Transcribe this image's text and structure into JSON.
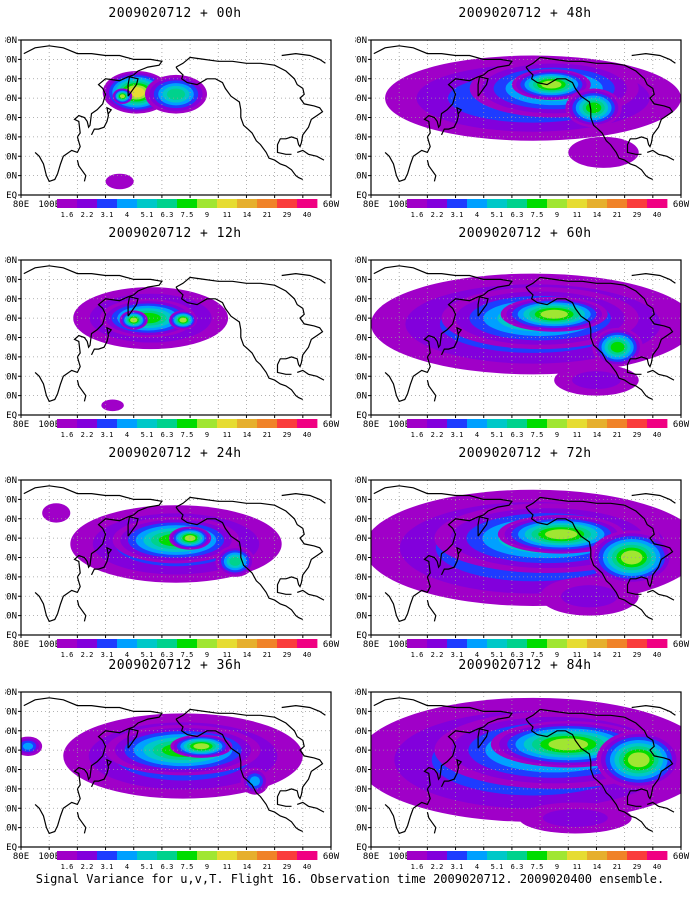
{
  "figure": {
    "caption": "Signal Variance for u,v,T. Flight 16. Observation time 2009020712. 2009020400 ensemble."
  },
  "panels": [
    {
      "title": "2009020712 + 00h"
    },
    {
      "title": "2009020712 + 48h"
    },
    {
      "title": "2009020712 + 12h"
    },
    {
      "title": "2009020712 + 60h"
    },
    {
      "title": "2009020712 + 24h"
    },
    {
      "title": "2009020712 + 72h"
    },
    {
      "title": "2009020712 + 36h"
    },
    {
      "title": "2009020712 + 84h"
    }
  ],
  "chart_data": {
    "type": "heatmap",
    "x_tick_labels": [
      "80E",
      "100E",
      "120E",
      "140E",
      "160E",
      "180",
      "160W",
      "140W",
      "120W",
      "100W",
      "80W",
      "60W"
    ],
    "y_tick_labels": [
      "EQ",
      "10N",
      "20N",
      "30N",
      "40N",
      "50N",
      "60N",
      "70N",
      "80N"
    ],
    "grid": true,
    "colorbar": {
      "levels": [
        "1.6",
        "2.2",
        "3.1",
        "4",
        "5.1",
        "6.3",
        "7.5",
        "9",
        "11",
        "14",
        "21",
        "29",
        "40"
      ],
      "colors": [
        "#a000c8",
        "#8200dc",
        "#1e3cff",
        "#00a0ff",
        "#00c8c8",
        "#00d28c",
        "#00dc00",
        "#a0e632",
        "#e6dc32",
        "#e6af2d",
        "#f08228",
        "#fa3c3c",
        "#f00082"
      ],
      "placement": "bottom"
    },
    "panels": [
      {
        "lead": "00h",
        "features": [
          {
            "lon": 162,
            "lat": 53,
            "lon_radius": 24,
            "lat_radius": 11,
            "peak": 11
          },
          {
            "lon": 152,
            "lat": 51,
            "lon_radius": 7,
            "lat_radius": 4,
            "peak": 9
          },
          {
            "lon": 194,
            "lat": 50,
            "lon_radius": 8,
            "lat_radius": 5,
            "peak": 11
          },
          {
            "lon": 190,
            "lat": 52,
            "lon_radius": 22,
            "lat_radius": 10,
            "peak": 6
          },
          {
            "lon": 150,
            "lat": 7,
            "lon_radius": 10,
            "lat_radius": 4,
            "peak": 1.6
          }
        ]
      },
      {
        "lead": "48h",
        "features": [
          {
            "lon": 195,
            "lat": 50,
            "lon_radius": 105,
            "lat_radius": 22,
            "peak": 4
          },
          {
            "lon": 210,
            "lat": 55,
            "lon_radius": 60,
            "lat_radius": 15,
            "peak": 6.3
          },
          {
            "lon": 208,
            "lat": 57,
            "lon_radius": 28,
            "lat_radius": 8,
            "peak": 9
          },
          {
            "lon": 238,
            "lat": 45,
            "lon_radius": 20,
            "lat_radius": 10,
            "peak": 7.5
          },
          {
            "lon": 245,
            "lat": 22,
            "lon_radius": 25,
            "lat_radius": 8,
            "peak": 1.6
          }
        ]
      },
      {
        "lead": "12h",
        "features": [
          {
            "lon": 172,
            "lat": 50,
            "lon_radius": 55,
            "lat_radius": 16,
            "peak": 4
          },
          {
            "lon": 170,
            "lat": 50,
            "lon_radius": 34,
            "lat_radius": 10,
            "peak": 7.5
          },
          {
            "lon": 160,
            "lat": 49,
            "lon_radius": 10,
            "lat_radius": 5,
            "peak": 9
          },
          {
            "lon": 195,
            "lat": 49,
            "lon_radius": 10,
            "lat_radius": 5,
            "peak": 9
          },
          {
            "lon": 145,
            "lat": 5,
            "lon_radius": 8,
            "lat_radius": 3,
            "peak": 1.6
          }
        ]
      },
      {
        "lead": "60h",
        "features": [
          {
            "lon": 195,
            "lat": 47,
            "lon_radius": 115,
            "lat_radius": 26,
            "peak": 4
          },
          {
            "lon": 200,
            "lat": 50,
            "lon_radius": 70,
            "lat_radius": 16,
            "peak": 6.3
          },
          {
            "lon": 210,
            "lat": 52,
            "lon_radius": 38,
            "lat_radius": 9,
            "peak": 9
          },
          {
            "lon": 255,
            "lat": 35,
            "lon_radius": 18,
            "lat_radius": 10,
            "peak": 7.5
          },
          {
            "lon": 240,
            "lat": 18,
            "lon_radius": 30,
            "lat_radius": 8,
            "peak": 2.2
          }
        ]
      },
      {
        "lead": "24h",
        "features": [
          {
            "lon": 190,
            "lat": 47,
            "lon_radius": 75,
            "lat_radius": 20,
            "peak": 4
          },
          {
            "lon": 190,
            "lat": 49,
            "lon_radius": 45,
            "lat_radius": 12,
            "peak": 7.5
          },
          {
            "lon": 200,
            "lat": 50,
            "lon_radius": 15,
            "lat_radius": 6,
            "peak": 9
          },
          {
            "lon": 232,
            "lat": 38,
            "lon_radius": 14,
            "lat_radius": 8,
            "peak": 6.3
          },
          {
            "lon": 105,
            "lat": 63,
            "lon_radius": 10,
            "lat_radius": 5,
            "peak": 1.6
          }
        ]
      },
      {
        "lead": "72h",
        "features": [
          {
            "lon": 195,
            "lat": 45,
            "lon_radius": 120,
            "lat_radius": 30,
            "peak": 4
          },
          {
            "lon": 205,
            "lat": 50,
            "lon_radius": 80,
            "lat_radius": 18,
            "peak": 6.3
          },
          {
            "lon": 215,
            "lat": 52,
            "lon_radius": 45,
            "lat_radius": 10,
            "peak": 9
          },
          {
            "lon": 265,
            "lat": 40,
            "lon_radius": 30,
            "lat_radius": 14,
            "peak": 9
          },
          {
            "lon": 235,
            "lat": 20,
            "lon_radius": 35,
            "lat_radius": 10,
            "peak": 2.2
          }
        ]
      },
      {
        "lead": "36h",
        "features": [
          {
            "lon": 195,
            "lat": 47,
            "lon_radius": 85,
            "lat_radius": 22,
            "peak": 4
          },
          {
            "lon": 195,
            "lat": 50,
            "lon_radius": 55,
            "lat_radius": 13,
            "peak": 7.5
          },
          {
            "lon": 208,
            "lat": 52,
            "lon_radius": 22,
            "lat_radius": 6,
            "peak": 9
          },
          {
            "lon": 246,
            "lat": 34,
            "lon_radius": 10,
            "lat_radius": 7,
            "peak": 4
          },
          {
            "lon": 85,
            "lat": 52,
            "lon_radius": 10,
            "lat_radius": 5,
            "peak": 4
          }
        ]
      },
      {
        "lead": "84h",
        "features": [
          {
            "lon": 195,
            "lat": 45,
            "lon_radius": 125,
            "lat_radius": 32,
            "peak": 4
          },
          {
            "lon": 210,
            "lat": 50,
            "lon_radius": 85,
            "lat_radius": 20,
            "peak": 6.3
          },
          {
            "lon": 220,
            "lat": 53,
            "lon_radius": 55,
            "lat_radius": 12,
            "peak": 9
          },
          {
            "lon": 270,
            "lat": 45,
            "lon_radius": 30,
            "lat_radius": 15,
            "peak": 9
          },
          {
            "lon": 225,
            "lat": 15,
            "lon_radius": 40,
            "lat_radius": 8,
            "peak": 2.2
          }
        ]
      }
    ]
  }
}
